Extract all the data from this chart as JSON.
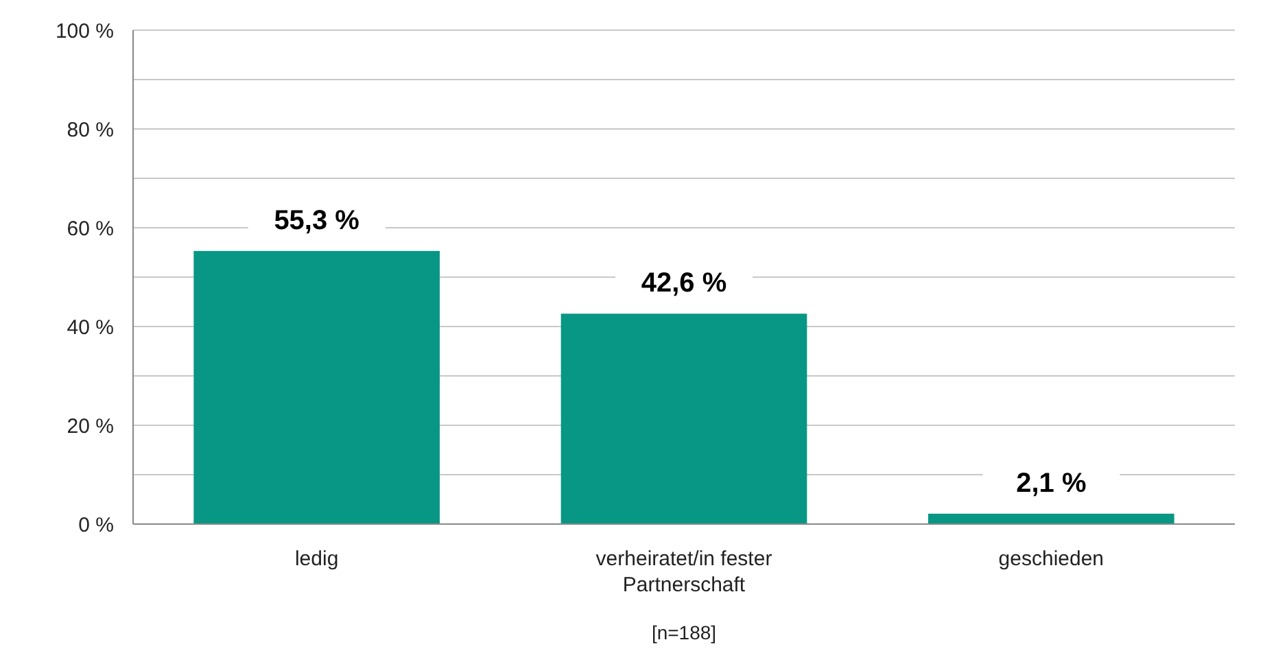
{
  "chart_data": {
    "type": "bar",
    "categories": [
      "ledig",
      "verheiratet/in fester Partnerschaft",
      "geschieden"
    ],
    "values": [
      55.3,
      42.6,
      2.1
    ],
    "color": "#089784",
    "value_labels": [
      "55,3 %",
      "42,6 %",
      "2,1 %"
    ],
    "ylim": [
      0,
      100
    ],
    "yticks": [
      {
        "value": 0,
        "label": "0 %"
      },
      {
        "value": 10,
        "label": null
      },
      {
        "value": 20,
        "label": "20 %"
      },
      {
        "value": 30,
        "label": null
      },
      {
        "value": 40,
        "label": "40 %"
      },
      {
        "value": 50,
        "label": null
      },
      {
        "value": 60,
        "label": "60 %"
      },
      {
        "value": 70,
        "label": null
      },
      {
        "value": 80,
        "label": "80 %"
      },
      {
        "value": 90,
        "label": null
      },
      {
        "value": 100,
        "label": "100 %"
      }
    ],
    "grid": "y",
    "annotations": [
      "[n=188]"
    ]
  }
}
